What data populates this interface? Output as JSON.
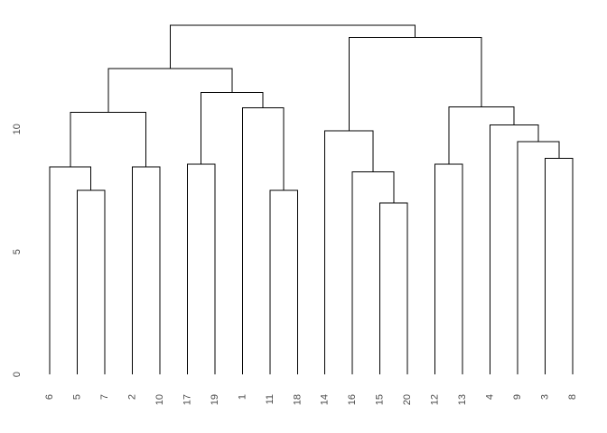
{
  "figure": {
    "background_color": "#ffffff",
    "line_color": "#000000",
    "text_color": "#4a4a4a"
  },
  "chart_data": {
    "type": "dendrogram",
    "title": "",
    "xlabel": "",
    "ylabel": "",
    "grid": false,
    "legend": false,
    "ylim": [
      0,
      15
    ],
    "yticks": [
      0,
      5,
      10
    ],
    "leaf_order": [
      "6",
      "5",
      "7",
      "2",
      "10",
      "17",
      "19",
      "1",
      "11",
      "18",
      "14",
      "16",
      "15",
      "20",
      "12",
      "13",
      "4",
      "9",
      "3",
      "8"
    ],
    "tree": {
      "h": 14.25,
      "children": [
        {
          "h": 12.47,
          "children": [
            {
              "h": 10.69,
              "children": [
                {
                  "h": 8.46,
                  "children": [
                    {
                      "leaf": "6"
                    },
                    {
                      "h": 7.5,
                      "children": [
                        {
                          "leaf": "5"
                        },
                        {
                          "leaf": "7"
                        }
                      ]
                    }
                  ]
                },
                {
                  "h": 8.46,
                  "children": [
                    {
                      "leaf": "2"
                    },
                    {
                      "leaf": "10"
                    }
                  ]
                }
              ]
            },
            {
              "h": 11.5,
              "children": [
                {
                  "h": 8.58,
                  "children": [
                    {
                      "leaf": "17"
                    },
                    {
                      "leaf": "19"
                    }
                  ]
                },
                {
                  "h": 10.87,
                  "children": [
                    {
                      "leaf": "1"
                    },
                    {
                      "h": 7.5,
                      "children": [
                        {
                          "leaf": "11"
                        },
                        {
                          "leaf": "18"
                        }
                      ]
                    }
                  ]
                }
              ]
            }
          ]
        },
        {
          "h": 13.75,
          "children": [
            {
              "h": 9.93,
              "children": [
                {
                  "leaf": "14"
                },
                {
                  "h": 8.27,
                  "children": [
                    {
                      "leaf": "16"
                    },
                    {
                      "h": 6.99,
                      "children": [
                        {
                          "leaf": "15"
                        },
                        {
                          "leaf": "20"
                        }
                      ]
                    }
                  ]
                }
              ]
            },
            {
              "h": 10.91,
              "children": [
                {
                  "h": 8.58,
                  "children": [
                    {
                      "leaf": "12"
                    },
                    {
                      "leaf": "13"
                    }
                  ]
                },
                {
                  "h": 10.17,
                  "children": [
                    {
                      "leaf": "4"
                    },
                    {
                      "h": 9.5,
                      "children": [
                        {
                          "leaf": "9"
                        },
                        {
                          "h": 8.82,
                          "children": [
                            {
                              "leaf": "3"
                            },
                            {
                              "leaf": "8"
                            }
                          ]
                        }
                      ]
                    }
                  ]
                }
              ]
            }
          ]
        }
      ]
    }
  }
}
